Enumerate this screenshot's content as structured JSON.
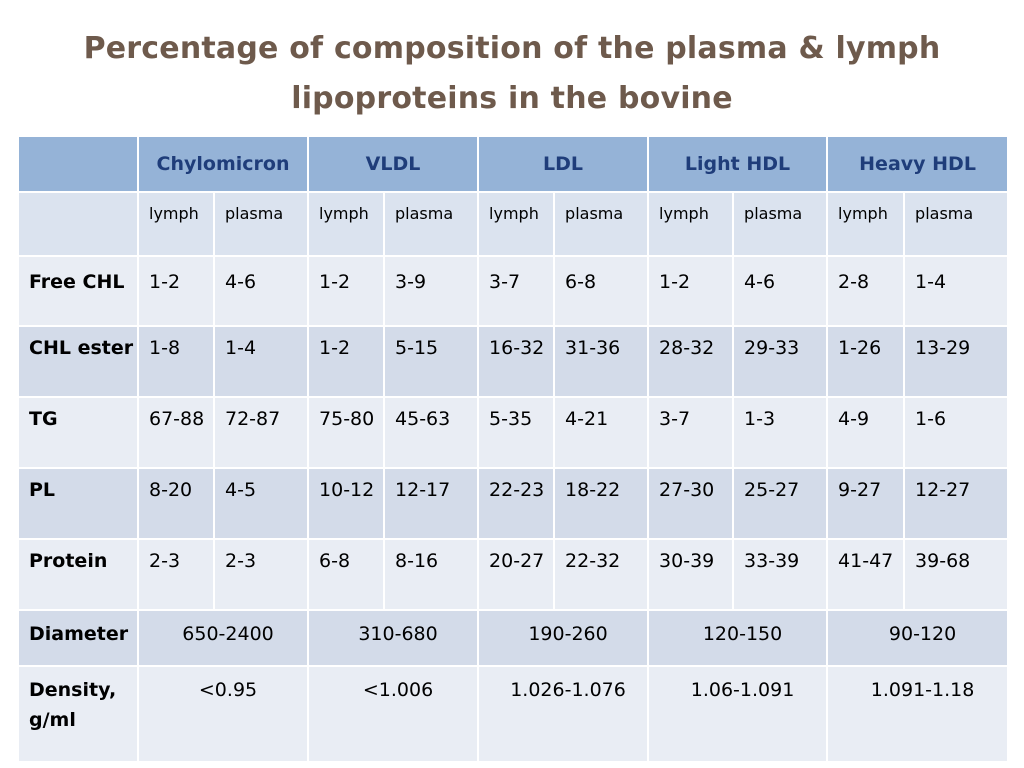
{
  "title": {
    "line1": "Percentage of composition of the plasma & lymph",
    "line2": "lipoproteins in the bovine"
  },
  "table": {
    "groups": [
      "Chylomicron",
      "VLDL",
      "LDL",
      "Light HDL",
      "Heavy HDL"
    ],
    "subheaders": [
      "lymph",
      "plasma",
      "lymph",
      "plasma",
      "lymph",
      "plasma",
      "lymph",
      "plasma",
      "lymph",
      "plasma"
    ],
    "rows": [
      {
        "label": "Free CHL",
        "cells": [
          "1-2",
          "4-6",
          "1-2",
          "3-9",
          "3-7",
          "6-8",
          "1-2",
          "4-6",
          "2-8",
          "1-4"
        ]
      },
      {
        "label": "CHL ester",
        "cells": [
          "1-8",
          "1-4",
          "1-2",
          "5-15",
          "16-32",
          "31-36",
          "28-32",
          "29-33",
          "1-26",
          "13-29"
        ]
      },
      {
        "label": "TG",
        "cells": [
          "67-88",
          "72-87",
          "75-80",
          "45-63",
          "5-35",
          "4-21",
          "3-7",
          "1-3",
          "4-9",
          "1-6"
        ]
      },
      {
        "label": "PL",
        "cells": [
          "8-20",
          "4-5",
          "10-12",
          "12-17",
          "22-23",
          "18-22",
          "27-30",
          "25-27",
          "9-27",
          "12-27"
        ]
      },
      {
        "label": "Protein",
        "cells": [
          "2-3",
          "2-3",
          "6-8",
          "8-16",
          "20-27",
          "22-32",
          "30-39",
          "33-39",
          "41-47",
          "39-68"
        ]
      }
    ],
    "diameter": {
      "label": "Diameter",
      "cells": [
        "650-2400",
        "310-680",
        "190-260",
        "120-150",
        "90-120"
      ]
    },
    "density": {
      "label": "Density, g/ml",
      "cells": [
        "<0.95",
        "<1.006",
        "1.026-1.076",
        "1.06-1.091",
        "1.091-1.18"
      ]
    }
  }
}
